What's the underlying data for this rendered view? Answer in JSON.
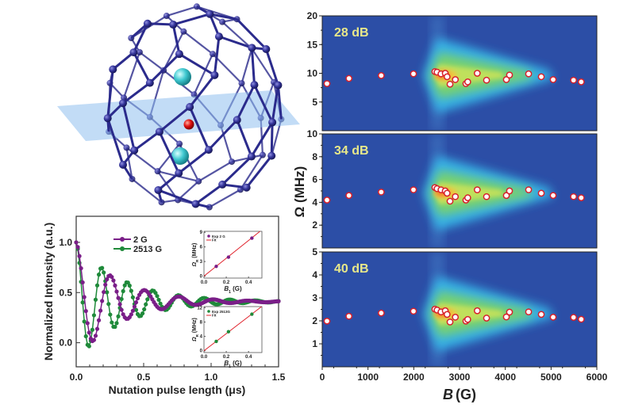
{
  "molecule": {
    "cage_color": "#2b2b8c",
    "plane_color": "#8fc0ee",
    "guest_color": "#3fc8d0",
    "center_atom_color": "#e01010"
  },
  "chart_data": [
    {
      "id": "nutation",
      "type": "line",
      "title": "",
      "xlabel": "Nutation pulse length (μs)",
      "ylabel": "Normalized Intensity (a.u.)",
      "xlim": [
        0,
        1.5
      ],
      "ylim": [
        -0.24,
        1.26
      ],
      "xticks": [
        "0.0",
        "0.5",
        "1.0",
        "1.5"
      ],
      "yticks": [
        "0.0",
        "0.5",
        "1.0"
      ],
      "legend": "top-left",
      "sample_step_us": 0.012,
      "series": [
        {
          "name": "2513 G",
          "color": "#1f8a3a",
          "model": "offset + amplitude*exp(-t/decay)*cos(2*pi*t/period)",
          "offset": 0.41,
          "amplitude": 0.59,
          "period_us": 0.19,
          "decay_us": 0.34
        },
        {
          "name": "2 G",
          "color": "#7a1e88",
          "model": "offset + amplitude*exp(-t/decay)*cos(2*pi*t/period)",
          "offset": 0.41,
          "amplitude": 0.59,
          "period_us": 0.255,
          "decay_us": 0.31
        }
      ]
    },
    {
      "id": "inset-2G",
      "type": "scatter",
      "xlabel_main": "B",
      "xlabel_sub": "1",
      "xlabel_unit": " (G)",
      "ylabel_main": "Ω",
      "ylabel_sub": "R",
      "ylabel_unit": " (MHz)",
      "xlim": [
        0,
        0.52
      ],
      "ylim": [
        -0.4,
        9.2
      ],
      "xticks": [
        0.0,
        0.2,
        0.4
      ],
      "xtick_labels": [
        "0.0",
        "0.2",
        "0.4"
      ],
      "yticks": [
        0,
        3,
        6,
        9
      ],
      "ytick_labels": [
        "0",
        "3",
        "6",
        "9"
      ],
      "legend": "top-left",
      "series": [
        {
          "name": "Exp 2 G",
          "color": "#7a1e88",
          "x": [
            0.11,
            0.22,
            0.43
          ],
          "y": [
            2.0,
            3.9,
            7.8
          ]
        },
        {
          "name": "Fit",
          "color": "#e0202a",
          "slope": 18.3
        }
      ]
    },
    {
      "id": "inset-2513G",
      "type": "scatter",
      "xlabel_main": "B",
      "xlabel_sub": "1",
      "xlabel_unit": " (G)",
      "ylabel_main": "Ω",
      "ylabel_sub": "R",
      "ylabel_unit": " (MHz)",
      "xlim": [
        0,
        0.52
      ],
      "ylim": [
        -0.5,
        12.3
      ],
      "xticks": [
        0.0,
        0.2,
        0.4
      ],
      "xtick_labels": [
        "0.0",
        "0.2",
        "0.4"
      ],
      "yticks": [
        0,
        4,
        8,
        12
      ],
      "ytick_labels": [
        "0",
        "4",
        "8",
        "12"
      ],
      "legend": "top-left",
      "series": [
        {
          "name": "Exp 2513G",
          "color": "#1f8a3a",
          "x": [
            0.11,
            0.22,
            0.43
          ],
          "y": [
            2.6,
            5.3,
            10.2
          ]
        },
        {
          "name": "Fit",
          "color": "#e0202a",
          "slope": 23.8
        }
      ]
    },
    {
      "id": "ft-maps",
      "type": "heatmap",
      "xlabel_main": "B",
      "xlabel_unit": "(G)",
      "ylabel": "Ω (MHz)",
      "xlim": [
        0,
        6000
      ],
      "xticks": [
        "0",
        "1000",
        "2000",
        "3000",
        "4000",
        "5000",
        "6000"
      ],
      "background": "#2c4ea6",
      "point_fill": "#ffffff",
      "point_stroke": "#d8202a",
      "B": [
        104,
        584,
        1289,
        1994,
        2462,
        2509,
        2595,
        2688,
        2728,
        2792,
        2908,
        3139,
        3179,
        3387,
        3590,
        4023,
        4092,
        4509,
        4786,
        5046,
        5491,
        5659
      ],
      "panels": [
        {
          "label": "28 dB",
          "ylim": [
            0,
            20
          ],
          "yticks": [
            "5",
            "10",
            "15",
            "20"
          ],
          "ytick_values": [
            5,
            10,
            15,
            20
          ],
          "center": 9.6,
          "omega": [
            8.2,
            9.1,
            9.6,
            9.9,
            10.3,
            10.2,
            9.9,
            10.0,
            9.4,
            8.1,
            8.9,
            8.2,
            8.5,
            10.0,
            8.8,
            8.9,
            9.7,
            9.9,
            9.4,
            8.9,
            8.8,
            8.5
          ]
        },
        {
          "label": "34 dB",
          "ylim": [
            0,
            10
          ],
          "yticks": [
            "2",
            "4",
            "6",
            "8",
            "10"
          ],
          "ytick_values": [
            2,
            4,
            6,
            8,
            10
          ],
          "center": 4.8,
          "omega": [
            4.2,
            4.6,
            4.9,
            5.1,
            5.3,
            5.2,
            5.1,
            5.0,
            4.8,
            4.1,
            4.5,
            4.2,
            4.4,
            5.1,
            4.5,
            4.6,
            5.0,
            5.1,
            4.8,
            4.6,
            4.5,
            4.4
          ]
        },
        {
          "label": "40 dB",
          "ylim": [
            0,
            5
          ],
          "yticks": [
            "1",
            "2",
            "3",
            "4",
            "5"
          ],
          "ytick_values": [
            1,
            2,
            3,
            4,
            5
          ],
          "center": 2.3,
          "omega": [
            1.99,
            2.2,
            2.34,
            2.42,
            2.51,
            2.47,
            2.39,
            2.44,
            2.28,
            1.95,
            2.16,
            1.99,
            2.06,
            2.44,
            2.12,
            2.17,
            2.38,
            2.39,
            2.28,
            2.16,
            2.15,
            2.07
          ]
        }
      ]
    }
  ]
}
